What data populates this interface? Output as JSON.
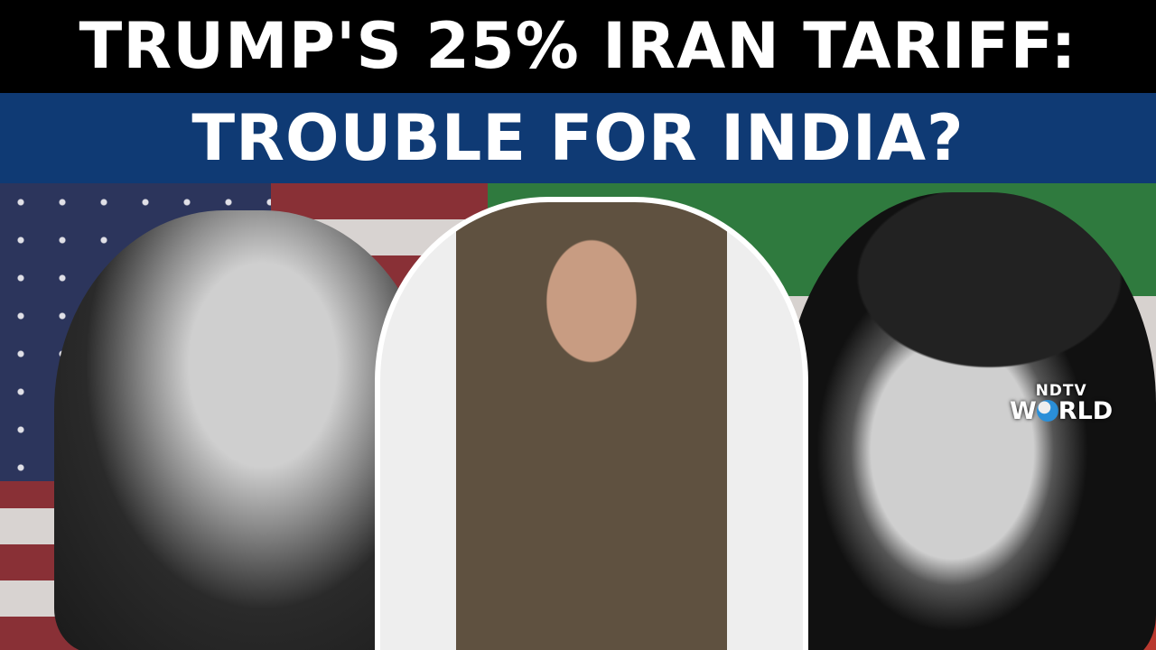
{
  "headline": {
    "line1": "TRUMP'S 25% IRAN TARIFF:",
    "line2": "TROUBLE FOR INDIA?"
  },
  "logo": {
    "top": "NDTV",
    "bottom_left": "W",
    "bottom_right": "RLD",
    "full": "NDTV WORLD"
  },
  "colors": {
    "headline_band_top": "#000000",
    "headline_band_bottom": "#0f3a74",
    "text": "#ffffff"
  }
}
